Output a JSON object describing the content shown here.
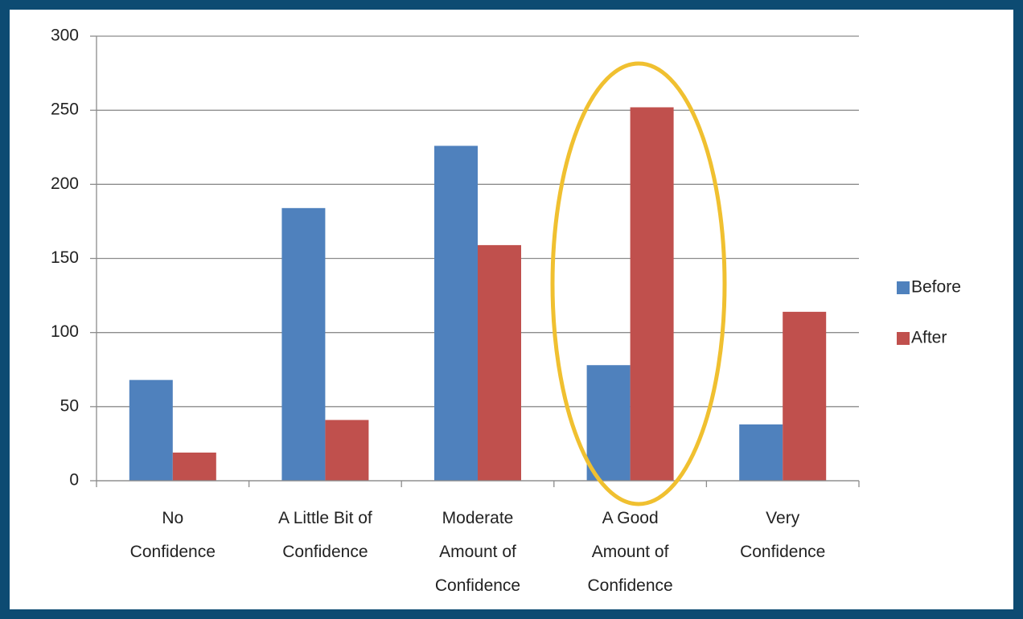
{
  "chart_data": {
    "type": "bar",
    "categories": [
      "No\nConfidence",
      "A Little Bit of\nConfidence",
      "Moderate\nAmount of\nConfidence",
      "A Good\nAmount of\nConfidence",
      "Very\nConfidence"
    ],
    "series": [
      {
        "name": "Before",
        "color": "#4f81bd",
        "values": [
          68,
          184,
          226,
          78,
          38
        ]
      },
      {
        "name": "After",
        "color": "#c0504d",
        "values": [
          19,
          41,
          159,
          252,
          114
        ]
      }
    ],
    "ylim": [
      0,
      300
    ],
    "yticks": [
      0,
      50,
      100,
      150,
      200,
      250,
      300
    ],
    "grid": true,
    "legend": "right"
  }
}
